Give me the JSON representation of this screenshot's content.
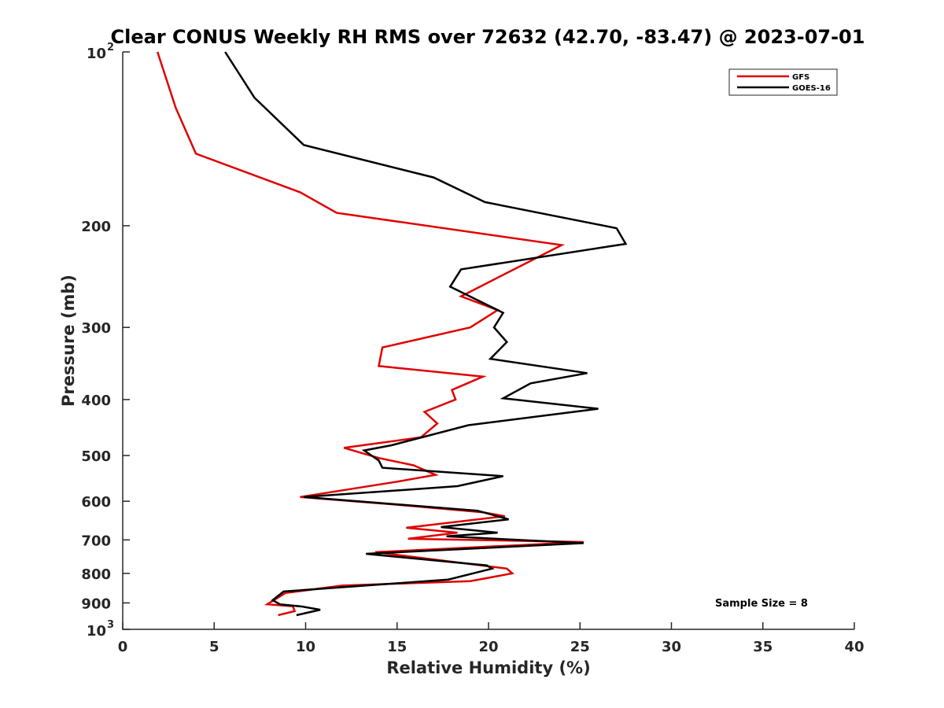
{
  "chart_data": {
    "type": "line",
    "title": "Clear CONUS Weekly RH RMS over 72632 (42.70, -83.47) @ 2023-07-01",
    "xlabel": "Relative Humidity (%)",
    "ylabel": "Pressure (mb)",
    "xlim": [
      0,
      40
    ],
    "ylim": [
      100,
      1000
    ],
    "y_scale": "log",
    "y_reversed": true,
    "grid": false,
    "legend_position": "top-right",
    "x_ticks": [
      "0",
      "5",
      "10",
      "15",
      "20",
      "25",
      "30",
      "35",
      "40"
    ],
    "y_ticks": [
      {
        "value": 100,
        "base": "10",
        "exp": "2"
      },
      {
        "value": 200,
        "label": "200"
      },
      {
        "value": 300,
        "label": "300"
      },
      {
        "value": 400,
        "label": "400"
      },
      {
        "value": 500,
        "label": "500"
      },
      {
        "value": 600,
        "label": "600"
      },
      {
        "value": 700,
        "label": "700"
      },
      {
        "value": 800,
        "label": "800"
      },
      {
        "value": 900,
        "label": "900"
      },
      {
        "value": 1000,
        "base": "10",
        "exp": "3"
      }
    ],
    "annotation": "Sample Size = 8",
    "series": [
      {
        "name": "GFS",
        "color": "#e00000",
        "points": [
          [
            1.9,
            100
          ],
          [
            2.9,
            125
          ],
          [
            4.0,
            150
          ],
          [
            9.7,
            175
          ],
          [
            11.7,
            190
          ],
          [
            24.0,
            216
          ],
          [
            18.5,
            265
          ],
          [
            20.5,
            280
          ],
          [
            19.0,
            300
          ],
          [
            14.2,
            325
          ],
          [
            14.0,
            350
          ],
          [
            19.7,
            365
          ],
          [
            18.0,
            385
          ],
          [
            18.2,
            400
          ],
          [
            16.5,
            420
          ],
          [
            17.2,
            440
          ],
          [
            16.3,
            465
          ],
          [
            12.1,
            485
          ],
          [
            14.0,
            505
          ],
          [
            15.9,
            520
          ],
          [
            17.1,
            540
          ],
          [
            15.0,
            555
          ],
          [
            9.7,
            590
          ],
          [
            14.9,
            608
          ],
          [
            19.7,
            627
          ],
          [
            20.9,
            637
          ],
          [
            15.5,
            667
          ],
          [
            18.3,
            680
          ],
          [
            15.6,
            697
          ],
          [
            25.2,
            706
          ],
          [
            13.8,
            735
          ],
          [
            21.0,
            785
          ],
          [
            21.3,
            800
          ],
          [
            19.0,
            825
          ],
          [
            12.0,
            840
          ],
          [
            8.9,
            865
          ],
          [
            7.9,
            905
          ],
          [
            9.3,
            912
          ],
          [
            9.4,
            930
          ],
          [
            8.5,
            945
          ]
        ]
      },
      {
        "name": "GOES-16",
        "color": "#000000",
        "points": [
          [
            5.6,
            100
          ],
          [
            7.2,
            120
          ],
          [
            9.9,
            145
          ],
          [
            17.0,
            165
          ],
          [
            19.8,
            182
          ],
          [
            27.0,
            202
          ],
          [
            27.5,
            215
          ],
          [
            18.5,
            238
          ],
          [
            17.9,
            255
          ],
          [
            20.8,
            283
          ],
          [
            20.3,
            300
          ],
          [
            21.0,
            318
          ],
          [
            20.1,
            340
          ],
          [
            25.4,
            360
          ],
          [
            22.3,
            375
          ],
          [
            20.8,
            398
          ],
          [
            26.0,
            415
          ],
          [
            18.9,
            443
          ],
          [
            14.7,
            480
          ],
          [
            13.2,
            490
          ],
          [
            14.0,
            510
          ],
          [
            14.2,
            525
          ],
          [
            20.8,
            543
          ],
          [
            18.3,
            565
          ],
          [
            9.9,
            590
          ],
          [
            19.4,
            623
          ],
          [
            21.1,
            645
          ],
          [
            17.4,
            665
          ],
          [
            20.5,
            680
          ],
          [
            17.7,
            690
          ],
          [
            25.2,
            709
          ],
          [
            13.3,
            740
          ],
          [
            19.9,
            775
          ],
          [
            20.2,
            785
          ],
          [
            17.8,
            820
          ],
          [
            8.8,
            860
          ],
          [
            8.2,
            890
          ],
          [
            8.6,
            905
          ],
          [
            9.8,
            913
          ],
          [
            10.8,
            925
          ],
          [
            9.5,
            945
          ]
        ]
      }
    ]
  }
}
